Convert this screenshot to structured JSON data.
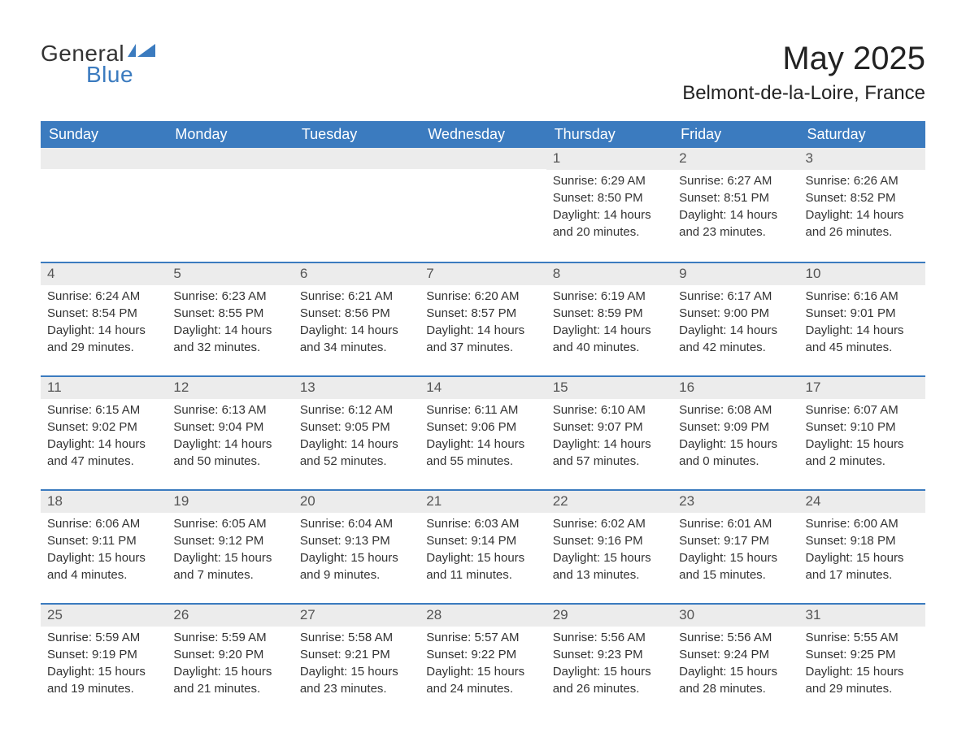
{
  "logo": {
    "word1": "General",
    "word2": "Blue"
  },
  "title": "May 2025",
  "location": "Belmont-de-la-Loire, France",
  "colors": {
    "header_bg": "#3b7bbf",
    "header_text": "#ffffff",
    "daynum_bg": "#ececec",
    "text": "#333333",
    "border": "#3b7bbf"
  },
  "typography": {
    "title_fontsize": 40,
    "location_fontsize": 24,
    "dow_fontsize": 18,
    "body_fontsize": 15
  },
  "days_of_week": [
    "Sunday",
    "Monday",
    "Tuesday",
    "Wednesday",
    "Thursday",
    "Friday",
    "Saturday"
  ],
  "weeks": [
    [
      null,
      null,
      null,
      null,
      {
        "n": "1",
        "sunrise": "6:29 AM",
        "sunset": "8:50 PM",
        "daylight": "14 hours and 20 minutes."
      },
      {
        "n": "2",
        "sunrise": "6:27 AM",
        "sunset": "8:51 PM",
        "daylight": "14 hours and 23 minutes."
      },
      {
        "n": "3",
        "sunrise": "6:26 AM",
        "sunset": "8:52 PM",
        "daylight": "14 hours and 26 minutes."
      }
    ],
    [
      {
        "n": "4",
        "sunrise": "6:24 AM",
        "sunset": "8:54 PM",
        "daylight": "14 hours and 29 minutes."
      },
      {
        "n": "5",
        "sunrise": "6:23 AM",
        "sunset": "8:55 PM",
        "daylight": "14 hours and 32 minutes."
      },
      {
        "n": "6",
        "sunrise": "6:21 AM",
        "sunset": "8:56 PM",
        "daylight": "14 hours and 34 minutes."
      },
      {
        "n": "7",
        "sunrise": "6:20 AM",
        "sunset": "8:57 PM",
        "daylight": "14 hours and 37 minutes."
      },
      {
        "n": "8",
        "sunrise": "6:19 AM",
        "sunset": "8:59 PM",
        "daylight": "14 hours and 40 minutes."
      },
      {
        "n": "9",
        "sunrise": "6:17 AM",
        "sunset": "9:00 PM",
        "daylight": "14 hours and 42 minutes."
      },
      {
        "n": "10",
        "sunrise": "6:16 AM",
        "sunset": "9:01 PM",
        "daylight": "14 hours and 45 minutes."
      }
    ],
    [
      {
        "n": "11",
        "sunrise": "6:15 AM",
        "sunset": "9:02 PM",
        "daylight": "14 hours and 47 minutes."
      },
      {
        "n": "12",
        "sunrise": "6:13 AM",
        "sunset": "9:04 PM",
        "daylight": "14 hours and 50 minutes."
      },
      {
        "n": "13",
        "sunrise": "6:12 AM",
        "sunset": "9:05 PM",
        "daylight": "14 hours and 52 minutes."
      },
      {
        "n": "14",
        "sunrise": "6:11 AM",
        "sunset": "9:06 PM",
        "daylight": "14 hours and 55 minutes."
      },
      {
        "n": "15",
        "sunrise": "6:10 AM",
        "sunset": "9:07 PM",
        "daylight": "14 hours and 57 minutes."
      },
      {
        "n": "16",
        "sunrise": "6:08 AM",
        "sunset": "9:09 PM",
        "daylight": "15 hours and 0 minutes."
      },
      {
        "n": "17",
        "sunrise": "6:07 AM",
        "sunset": "9:10 PM",
        "daylight": "15 hours and 2 minutes."
      }
    ],
    [
      {
        "n": "18",
        "sunrise": "6:06 AM",
        "sunset": "9:11 PM",
        "daylight": "15 hours and 4 minutes."
      },
      {
        "n": "19",
        "sunrise": "6:05 AM",
        "sunset": "9:12 PM",
        "daylight": "15 hours and 7 minutes."
      },
      {
        "n": "20",
        "sunrise": "6:04 AM",
        "sunset": "9:13 PM",
        "daylight": "15 hours and 9 minutes."
      },
      {
        "n": "21",
        "sunrise": "6:03 AM",
        "sunset": "9:14 PM",
        "daylight": "15 hours and 11 minutes."
      },
      {
        "n": "22",
        "sunrise": "6:02 AM",
        "sunset": "9:16 PM",
        "daylight": "15 hours and 13 minutes."
      },
      {
        "n": "23",
        "sunrise": "6:01 AM",
        "sunset": "9:17 PM",
        "daylight": "15 hours and 15 minutes."
      },
      {
        "n": "24",
        "sunrise": "6:00 AM",
        "sunset": "9:18 PM",
        "daylight": "15 hours and 17 minutes."
      }
    ],
    [
      {
        "n": "25",
        "sunrise": "5:59 AM",
        "sunset": "9:19 PM",
        "daylight": "15 hours and 19 minutes."
      },
      {
        "n": "26",
        "sunrise": "5:59 AM",
        "sunset": "9:20 PM",
        "daylight": "15 hours and 21 minutes."
      },
      {
        "n": "27",
        "sunrise": "5:58 AM",
        "sunset": "9:21 PM",
        "daylight": "15 hours and 23 minutes."
      },
      {
        "n": "28",
        "sunrise": "5:57 AM",
        "sunset": "9:22 PM",
        "daylight": "15 hours and 24 minutes."
      },
      {
        "n": "29",
        "sunrise": "5:56 AM",
        "sunset": "9:23 PM",
        "daylight": "15 hours and 26 minutes."
      },
      {
        "n": "30",
        "sunrise": "5:56 AM",
        "sunset": "9:24 PM",
        "daylight": "15 hours and 28 minutes."
      },
      {
        "n": "31",
        "sunrise": "5:55 AM",
        "sunset": "9:25 PM",
        "daylight": "15 hours and 29 minutes."
      }
    ]
  ],
  "labels": {
    "sunrise": "Sunrise:",
    "sunset": "Sunset:",
    "daylight": "Daylight:"
  }
}
